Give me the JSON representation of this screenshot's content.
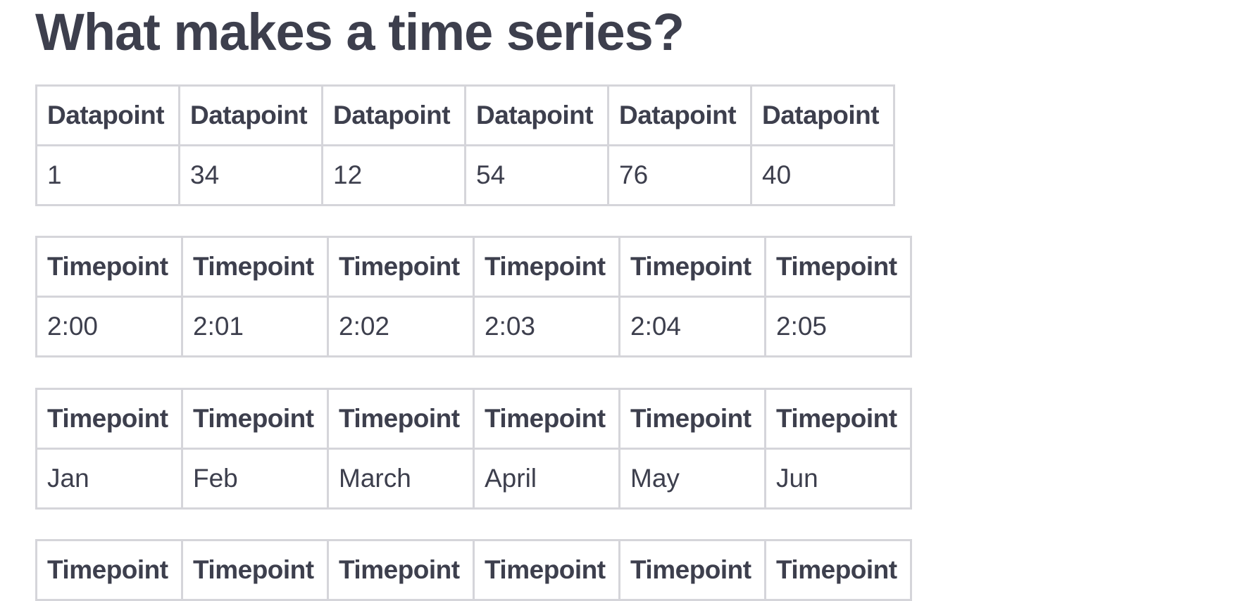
{
  "title": "What makes a time series?",
  "tables": [
    {
      "headers": [
        "Datapoint",
        "Datapoint",
        "Datapoint",
        "Datapoint",
        "Datapoint",
        "Datapoint"
      ],
      "row": [
        "1",
        "34",
        "12",
        "54",
        "76",
        "40"
      ]
    },
    {
      "headers": [
        "Timepoint",
        "Timepoint",
        "Timepoint",
        "Timepoint",
        "Timepoint",
        "Timepoint"
      ],
      "row": [
        "2:00",
        "2:01",
        "2:02",
        "2:03",
        "2:04",
        "2:05"
      ]
    },
    {
      "headers": [
        "Timepoint",
        "Timepoint",
        "Timepoint",
        "Timepoint",
        "Timepoint",
        "Timepoint"
      ],
      "row": [
        "Jan",
        "Feb",
        "March",
        "April",
        "May",
        "Jun"
      ]
    },
    {
      "headers": [
        "Timepoint",
        "Timepoint",
        "Timepoint",
        "Timepoint",
        "Timepoint",
        "Timepoint"
      ]
    }
  ],
  "colors": {
    "text": "#3d3f4d",
    "border": "#d5d5da",
    "background": "#ffffff"
  }
}
